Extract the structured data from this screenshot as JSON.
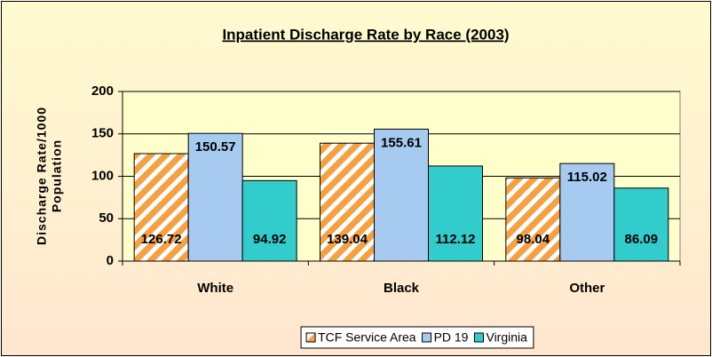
{
  "chart_data": {
    "type": "bar",
    "title": "Inpatient Discharge Rate by Race (2003)",
    "y_label": [
      "Discharge Rate/1000",
      "Population"
    ],
    "categories": [
      "White",
      "Black",
      "Other"
    ],
    "series": [
      {
        "name": "TCF Service Area",
        "color": "#f5a142",
        "values": [
          126.72,
          139.04,
          98.04
        ]
      },
      {
        "name": "PD 19",
        "color": "#a6caf0",
        "values": [
          150.57,
          155.61,
          115.02
        ]
      },
      {
        "name": "Virginia",
        "color": "#33cccc",
        "values": [
          94.92,
          112.12,
          86.09
        ]
      }
    ],
    "ylim": [
      0,
      200
    ],
    "yticks": [
      0,
      50,
      100,
      150,
      200
    ],
    "grid": true,
    "legend": "bottom"
  }
}
